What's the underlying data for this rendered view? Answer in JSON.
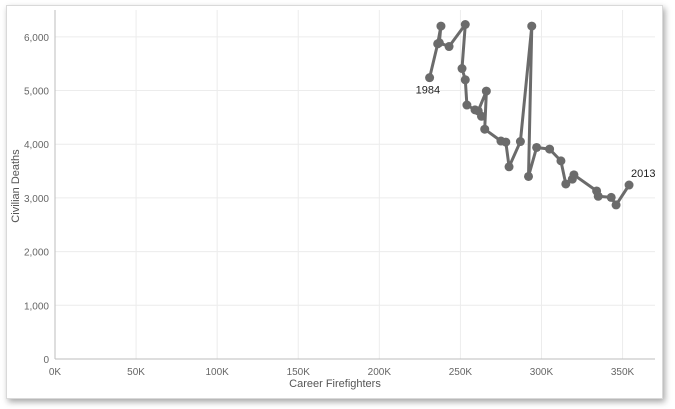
{
  "chart_data": {
    "type": "line",
    "xlabel": "Career Firefighters",
    "ylabel": "Civilian Deaths",
    "xlim": [
      0,
      370000
    ],
    "ylim": [
      0,
      6500
    ],
    "x_ticks": [
      0,
      50000,
      100000,
      150000,
      200000,
      250000,
      300000,
      350000
    ],
    "x_tick_labels": [
      "0K",
      "50K",
      "100K",
      "150K",
      "200K",
      "250K",
      "300K",
      "350K"
    ],
    "y_ticks": [
      0,
      1000,
      2000,
      3000,
      4000,
      5000,
      6000
    ],
    "y_tick_labels": [
      "0",
      "1,000",
      "2,000",
      "3,000",
      "4,000",
      "5,000",
      "6,000"
    ],
    "grid": true,
    "line_color": "#6b6b6b",
    "series": [
      {
        "points": [
          {
            "x": 231000,
            "y": 5240
          },
          {
            "x": 236000,
            "y": 5870
          },
          {
            "x": 238000,
            "y": 6200
          },
          {
            "x": 237000,
            "y": 5890
          },
          {
            "x": 243000,
            "y": 5820
          },
          {
            "x": 253000,
            "y": 6230
          },
          {
            "x": 251000,
            "y": 5410
          },
          {
            "x": 253000,
            "y": 5200
          },
          {
            "x": 254000,
            "y": 4730
          },
          {
            "x": 259000,
            "y": 4640
          },
          {
            "x": 263000,
            "y": 4520
          },
          {
            "x": 261000,
            "y": 4620
          },
          {
            "x": 266000,
            "y": 4990
          },
          {
            "x": 265000,
            "y": 4280
          },
          {
            "x": 275000,
            "y": 4060
          },
          {
            "x": 278000,
            "y": 4040
          },
          {
            "x": 280000,
            "y": 3580
          },
          {
            "x": 287000,
            "y": 4050
          },
          {
            "x": 294000,
            "y": 6200
          },
          {
            "x": 292000,
            "y": 3400
          },
          {
            "x": 297000,
            "y": 3940
          },
          {
            "x": 305000,
            "y": 3910
          },
          {
            "x": 312000,
            "y": 3690
          },
          {
            "x": 315000,
            "y": 3260
          },
          {
            "x": 319000,
            "y": 3350
          },
          {
            "x": 320000,
            "y": 3430
          },
          {
            "x": 334000,
            "y": 3130
          },
          {
            "x": 335000,
            "y": 3030
          },
          {
            "x": 343000,
            "y": 3010
          },
          {
            "x": 346000,
            "y": 2870
          },
          {
            "x": 354000,
            "y": 3240
          }
        ]
      }
    ],
    "annotations": [
      {
        "text": "1984",
        "x": 231000,
        "y": 5240,
        "position": "below-left"
      },
      {
        "text": "2013",
        "x": 354000,
        "y": 3240,
        "position": "above-right"
      }
    ]
  }
}
